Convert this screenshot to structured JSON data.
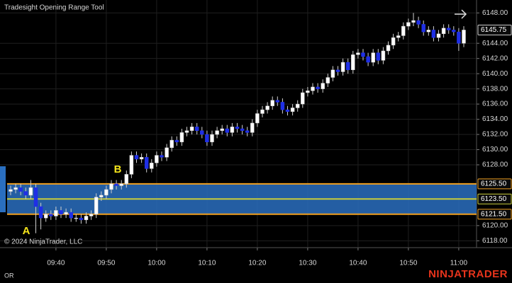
{
  "chart_data": {
    "type": "candlestick",
    "title": "Tradesight Opening Range Tool",
    "copyright": "© 2024 NinjaTrader, LLC",
    "footer_label": "OR",
    "brand": "NINJATRADER",
    "annotations": [
      "A",
      "B"
    ],
    "categories": [
      null,
      null,
      null,
      null,
      null,
      null,
      null,
      null,
      null,
      "09:40",
      null,
      null,
      null,
      null,
      null,
      null,
      null,
      null,
      null,
      "09:50",
      null,
      null,
      null,
      null,
      null,
      null,
      null,
      null,
      null,
      "10:00",
      null,
      null,
      null,
      null,
      null,
      null,
      null,
      null,
      null,
      "10:10",
      null,
      null,
      null,
      null,
      null,
      null,
      null,
      null,
      null,
      "10:20",
      null,
      null,
      null,
      null,
      null,
      null,
      null,
      null,
      null,
      "10:30",
      null,
      null,
      null,
      null,
      null,
      null,
      null,
      null,
      null,
      "10:40",
      null,
      null,
      null,
      null,
      null,
      null,
      null,
      null,
      null,
      "10:50",
      null,
      null,
      null,
      null,
      null,
      null,
      null,
      null,
      null,
      "11:00",
      null
    ],
    "open": [
      6124.5,
      6124.75,
      6125,
      6124.5,
      6124,
      6125,
      6122.5,
      6121,
      6121.5,
      6121.25,
      6122,
      6121.5,
      6121.75,
      6121,
      6121,
      6120.75,
      6121.25,
      6121.5,
      6123.75,
      6124,
      6124.75,
      6125.5,
      6125.25,
      6125.5,
      6126.75,
      6129.25,
      6128.75,
      6129,
      6127.5,
      6128.25,
      6129.25,
      6129,
      6130.25,
      6131.25,
      6131,
      6132.25,
      6132.5,
      6133,
      6132.5,
      6132,
      6131,
      6132,
      6132.5,
      6132.75,
      6132.25,
      6133,
      6132.75,
      6132.5,
      6132.25,
      6133.5,
      6134.75,
      6135.25,
      6135.75,
      6136.5,
      6136.25,
      6135.25,
      6135,
      6135.5,
      6136,
      6137.5,
      6137.75,
      6138.25,
      6138,
      6138.75,
      6139.5,
      6140.5,
      6140.25,
      6141.5,
      6140.5,
      6142.5,
      6142.75,
      6142.25,
      6141.5,
      6142.75,
      6141.75,
      6143,
      6143.75,
      6144.75,
      6145,
      6146.25,
      6146.75,
      6147,
      6146.5,
      6145.5,
      6145.75,
      6144.75,
      6145.25,
      6146,
      6145.75,
      6145.5,
      6144
    ],
    "high": [
      6125.25,
      6125.5,
      6125.5,
      6125,
      6126,
      6125.5,
      6123,
      6122,
      6122,
      6122.5,
      6122.5,
      6122.25,
      6122.25,
      6121.5,
      6121.5,
      6121.75,
      6122,
      6124.25,
      6124.5,
      6125.25,
      6126,
      6126,
      6126,
      6127.25,
      6129.75,
      6129.75,
      6129.5,
      6129.5,
      6128.75,
      6129.75,
      6129.75,
      6130.75,
      6131.75,
      6131.75,
      6132.75,
      6133,
      6133.5,
      6133.5,
      6133,
      6132.5,
      6132.5,
      6133,
      6133.25,
      6133.25,
      6133.5,
      6133.5,
      6133.25,
      6133,
      6134,
      6135.25,
      6135.75,
      6136.25,
      6137,
      6137,
      6136.75,
      6135.75,
      6136,
      6136.5,
      6138,
      6138.25,
      6138.75,
      6138.75,
      6139.25,
      6140,
      6141,
      6141,
      6142,
      6142,
      6143,
      6143.25,
      6143.25,
      6142.75,
      6143.25,
      6143.25,
      6143.5,
      6144.25,
      6145.25,
      6145.5,
      6146.75,
      6147.25,
      6148,
      6147.5,
      6147,
      6146.25,
      6146.25,
      6145.75,
      6146.5,
      6146.5,
      6146.25,
      6146,
      6146.25
    ],
    "low": [
      6124,
      6124.25,
      6124,
      6123.5,
      6123.5,
      6119,
      6119.5,
      6120.5,
      6120.75,
      6120.75,
      6121,
      6121,
      6120.5,
      6120.5,
      6120.25,
      6120.25,
      6120.75,
      6121,
      6123.25,
      6123.5,
      6124.25,
      6124.75,
      6124.75,
      6125,
      6126.25,
      6128.25,
      6128.25,
      6127,
      6127,
      6127.75,
      6128.5,
      6128.5,
      6129.75,
      6130.5,
      6130.5,
      6131.75,
      6132,
      6132,
      6131.5,
      6130.5,
      6130.5,
      6131.5,
      6132,
      6131.75,
      6131.75,
      6132.25,
      6132,
      6131.75,
      6131.75,
      6133,
      6134.25,
      6134.75,
      6135.25,
      6135.75,
      6134.75,
      6134.5,
      6134.5,
      6135,
      6135.5,
      6137,
      6137.25,
      6137.5,
      6137.5,
      6138.25,
      6139,
      6139.75,
      6139.75,
      6140,
      6140,
      6142,
      6141.75,
      6141,
      6141,
      6141.25,
      6141.25,
      6142.5,
      6143.25,
      6144.25,
      6144.5,
      6145.75,
      6146.25,
      6146,
      6145,
      6145,
      6144.25,
      6144.25,
      6144.75,
      6145.25,
      6145,
      6143,
      6143.5
    ],
    "close": [
      6124.75,
      6125,
      6124.5,
      6124,
      6125,
      6122.5,
      6121,
      6121.5,
      6121.25,
      6122,
      6121.5,
      6121.75,
      6121,
      6121,
      6120.75,
      6121.25,
      6121.5,
      6123.75,
      6124,
      6124.75,
      6125.5,
      6125.25,
      6125.5,
      6126.75,
      6129.25,
      6128.75,
      6129,
      6127.5,
      6128.25,
      6129.25,
      6129,
      6130.25,
      6131.25,
      6131,
      6132.25,
      6132.5,
      6133,
      6132.5,
      6132,
      6131,
      6132,
      6132.5,
      6132.75,
      6132.25,
      6133,
      6132.75,
      6132.5,
      6132.25,
      6133.5,
      6134.75,
      6135.25,
      6135.75,
      6136.5,
      6136.25,
      6135.25,
      6135,
      6135.5,
      6136,
      6137.5,
      6137.75,
      6138.25,
      6138,
      6138.75,
      6139.5,
      6140.5,
      6140.25,
      6141.5,
      6140.5,
      6142.5,
      6142.75,
      6142.25,
      6141.5,
      6142.75,
      6141.75,
      6143,
      6143.75,
      6144.75,
      6145,
      6146.25,
      6146.75,
      6147,
      6146.5,
      6145.5,
      6145.75,
      6144.75,
      6145.25,
      6146,
      6145.75,
      6145.5,
      6144,
      6145.75
    ],
    "up_color": "#ffffff",
    "down_color": "#1f2fe6",
    "ylim": [
      6117.1,
      6149.7
    ],
    "yticks": [
      {
        "value": 6118,
        "label": "6118.00"
      },
      {
        "value": 6120,
        "label": "6120.00"
      },
      {
        "value": 6128,
        "label": "6128.00"
      },
      {
        "value": 6130,
        "label": "6130.00"
      },
      {
        "value": 6132,
        "label": "6132.00"
      },
      {
        "value": 6134,
        "label": "6134.00"
      },
      {
        "value": 6136,
        "label": "6136.00"
      },
      {
        "value": 6138,
        "label": "6138.00"
      },
      {
        "value": 6140,
        "label": "6140.00"
      },
      {
        "value": 6142,
        "label": "6142.00"
      },
      {
        "value": 6144,
        "label": "6144.00"
      },
      {
        "value": 6148,
        "label": "6148.00"
      }
    ],
    "grid": true,
    "band_color": "#2a6fc0",
    "levels": [
      {
        "value": 6125.5,
        "label": "6125.50",
        "color": "#f0a020"
      },
      {
        "value": 6123.5,
        "label": "6123.50",
        "color": "#c8cc3a"
      },
      {
        "value": 6121.5,
        "label": "6121.50",
        "color": "#f0a020"
      }
    ],
    "last_price": {
      "value": 6145.75,
      "label": "6145.75"
    }
  }
}
